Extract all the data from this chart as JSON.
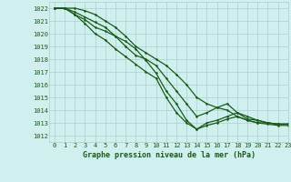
{
  "title": "Graphe pression niveau de la mer (hPa)",
  "bg_color": "#cff0ee",
  "grid_color": "#aacfcc",
  "line_color": "#1a5c1a",
  "marker_color": "#1a5c1a",
  "xlim": [
    -0.5,
    23
  ],
  "ylim": [
    1011.5,
    1022.5
  ],
  "yticks": [
    1012,
    1013,
    1014,
    1015,
    1016,
    1017,
    1018,
    1019,
    1020,
    1021,
    1022
  ],
  "xticks": [
    0,
    1,
    2,
    3,
    4,
    5,
    6,
    7,
    8,
    9,
    10,
    11,
    12,
    13,
    14,
    15,
    16,
    17,
    18,
    19,
    20,
    21,
    22,
    23
  ],
  "series": [
    [
      1022.0,
      1022.0,
      1021.5,
      1021.1,
      1020.5,
      1020.2,
      1019.8,
      1019.4,
      1018.8,
      1017.9,
      1016.9,
      1015.5,
      1014.5,
      1013.2,
      1012.5,
      1013.0,
      1013.2,
      1013.5,
      1013.8,
      1013.5,
      1013.2,
      1013.0,
      1012.9,
      1012.9
    ],
    [
      1022.0,
      1022.0,
      1021.5,
      1020.8,
      1020.0,
      1019.5,
      1018.8,
      1018.2,
      1017.6,
      1017.0,
      1016.5,
      1015.0,
      1013.8,
      1013.0,
      1012.5,
      1012.8,
      1013.0,
      1013.3,
      1013.5,
      1013.2,
      1013.0,
      1012.9,
      1012.8,
      1012.8
    ],
    [
      1022.0,
      1022.0,
      1021.7,
      1021.3,
      1020.9,
      1020.5,
      1019.8,
      1019.0,
      1018.3,
      1018.0,
      1017.5,
      1016.5,
      1015.5,
      1014.5,
      1013.5,
      1013.8,
      1014.2,
      1014.5,
      1013.8,
      1013.3,
      1013.2,
      1013.0,
      1012.9,
      1012.9
    ],
    [
      1022.0,
      1022.0,
      1022.0,
      1021.8,
      1021.5,
      1021.0,
      1020.5,
      1019.8,
      1019.0,
      1018.5,
      1018.0,
      1017.5,
      1016.8,
      1016.0,
      1015.0,
      1014.5,
      1014.2,
      1014.0,
      1013.5,
      1013.2,
      1013.0,
      1013.0,
      1012.9,
      1012.9
    ]
  ],
  "figsize": [
    3.2,
    2.0
  ],
  "dpi": 100,
  "title_fontsize": 6,
  "tick_fontsize": 5,
  "linewidth": 0.9,
  "markersize": 2.5
}
